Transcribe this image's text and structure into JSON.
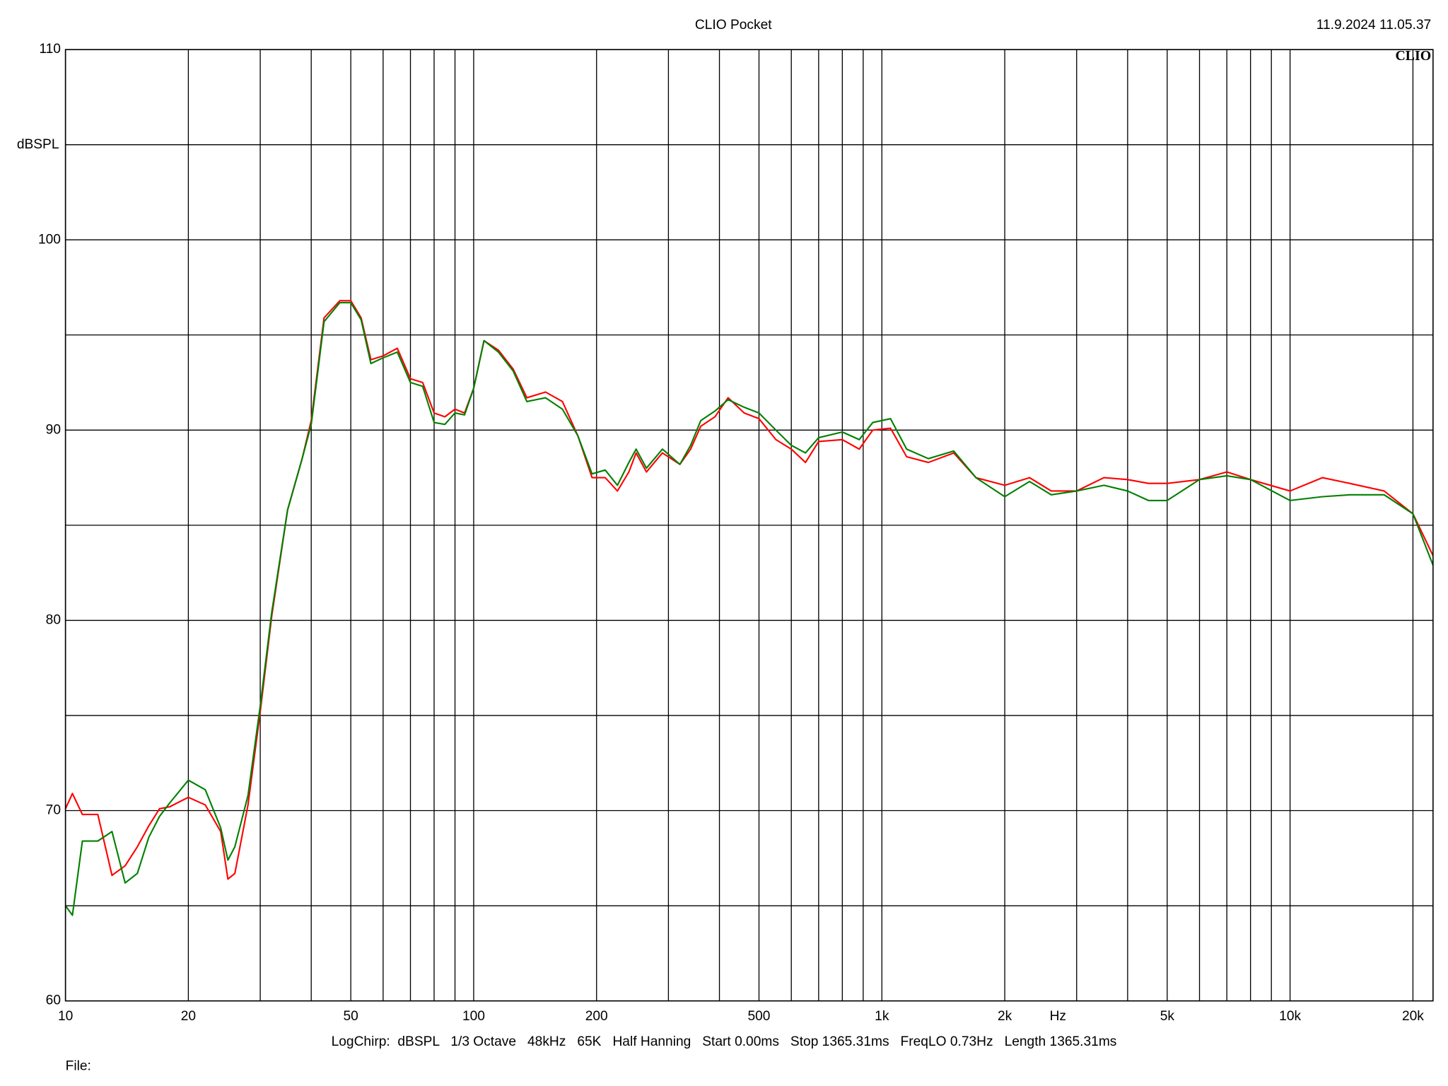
{
  "chart_data": {
    "type": "line",
    "title": "CLIO Pocket",
    "timestamp": "11.9.2024 11.05.37",
    "logo": "CLIO",
    "y_label": "dBSPL",
    "x_label": "Hz",
    "settings_text": "LogChirp:  dBSPL   1/3 Octave   48kHz   65K   Half Hanning   Start 0.00ms   Stop 1365.31ms   FreqLO 0.73Hz   Length 1365.31ms",
    "file_label": "File:",
    "x_scale": "log",
    "grid": true,
    "x": [
      10,
      10.4,
      11,
      12,
      13,
      14,
      15,
      16,
      17,
      18,
      20,
      22,
      24,
      25,
      26,
      28,
      30,
      32,
      35,
      38,
      40,
      43,
      47,
      50,
      53,
      56,
      60,
      65,
      70,
      75,
      80,
      85,
      90,
      95,
      100,
      106,
      115,
      125,
      135,
      150,
      165,
      180,
      195,
      210,
      225,
      240,
      250,
      265,
      290,
      320,
      340,
      360,
      390,
      420,
      460,
      500,
      550,
      600,
      650,
      700,
      800,
      880,
      950,
      1050,
      1150,
      1300,
      1500,
      1700,
      2000,
      2300,
      2600,
      3000,
      3500,
      4000,
      4500,
      5000,
      6000,
      7000,
      8000,
      10000,
      12000,
      14000,
      17000,
      20000,
      22400
    ],
    "series": [
      {
        "color": "#ff0000",
        "values": [
          70.1,
          70.9,
          69.8,
          69.8,
          66.6,
          67.1,
          68.1,
          69.2,
          70.1,
          70.2,
          70.7,
          70.3,
          68.9,
          66.4,
          66.7,
          70.3,
          75.2,
          80.2,
          85.8,
          88.5,
          90.5,
          95.9,
          96.8,
          96.8,
          95.9,
          93.7,
          93.9,
          94.3,
          92.7,
          92.5,
          90.9,
          90.7,
          91.1,
          90.9,
          92.2,
          94.7,
          94.2,
          93.2,
          91.7,
          92.0,
          91.5,
          89.7,
          87.5,
          87.5,
          86.8,
          87.8,
          88.8,
          87.8,
          88.8,
          88.2,
          89.0,
          90.2,
          90.7,
          91.7,
          90.9,
          90.6,
          89.5,
          89.0,
          88.3,
          89.4,
          89.5,
          89.0,
          90.0,
          90.1,
          88.6,
          88.3,
          88.8,
          87.5,
          87.1,
          87.5,
          86.8,
          86.8,
          87.5,
          87.4,
          87.2,
          87.2,
          87.4,
          87.8,
          87.4,
          86.8,
          87.5,
          87.2,
          86.8,
          85.6,
          83.4
        ]
      },
      {
        "color": "#008000",
        "values": [
          65.0,
          64.5,
          68.4,
          68.4,
          68.9,
          66.2,
          66.7,
          68.6,
          69.7,
          70.4,
          71.6,
          71.1,
          69.1,
          67.4,
          68.1,
          70.8,
          75.5,
          80.4,
          85.8,
          88.5,
          90.3,
          95.7,
          96.7,
          96.7,
          95.8,
          93.5,
          93.8,
          94.1,
          92.5,
          92.3,
          90.4,
          90.3,
          90.9,
          90.8,
          92.2,
          94.7,
          94.1,
          93.1,
          91.5,
          91.7,
          91.1,
          89.7,
          87.7,
          87.9,
          87.1,
          88.3,
          89.0,
          88.0,
          89.0,
          88.2,
          89.2,
          90.5,
          91.0,
          91.6,
          91.2,
          90.9,
          90.0,
          89.2,
          88.8,
          89.6,
          89.9,
          89.5,
          90.4,
          90.6,
          89.0,
          88.5,
          88.9,
          87.5,
          86.5,
          87.3,
          86.6,
          86.8,
          87.1,
          86.8,
          86.3,
          86.3,
          87.4,
          87.6,
          87.4,
          86.3,
          86.5,
          86.6,
          86.6,
          85.6,
          82.9
        ]
      }
    ],
    "xlim": [
      10,
      22400
    ],
    "xticks": [
      10,
      20,
      50,
      100,
      200,
      500,
      {
        "value": 1000,
        "label": "1k"
      },
      {
        "value": 2000,
        "label": "2k"
      },
      {
        "value": 5000,
        "label": "5k"
      },
      {
        "value": 10000,
        "label": "10k"
      },
      {
        "value": 20000,
        "label": "20k"
      }
    ],
    "xgrid_minor": [
      30,
      40,
      60,
      70,
      80,
      90,
      300,
      400,
      600,
      700,
      800,
      900,
      3000,
      4000,
      6000,
      7000,
      8000,
      9000
    ],
    "ylim": [
      60,
      110
    ],
    "yticks": [
      60,
      70,
      80,
      90,
      100,
      110
    ],
    "ygrid_minor": [
      65,
      75,
      85,
      95,
      105
    ]
  }
}
